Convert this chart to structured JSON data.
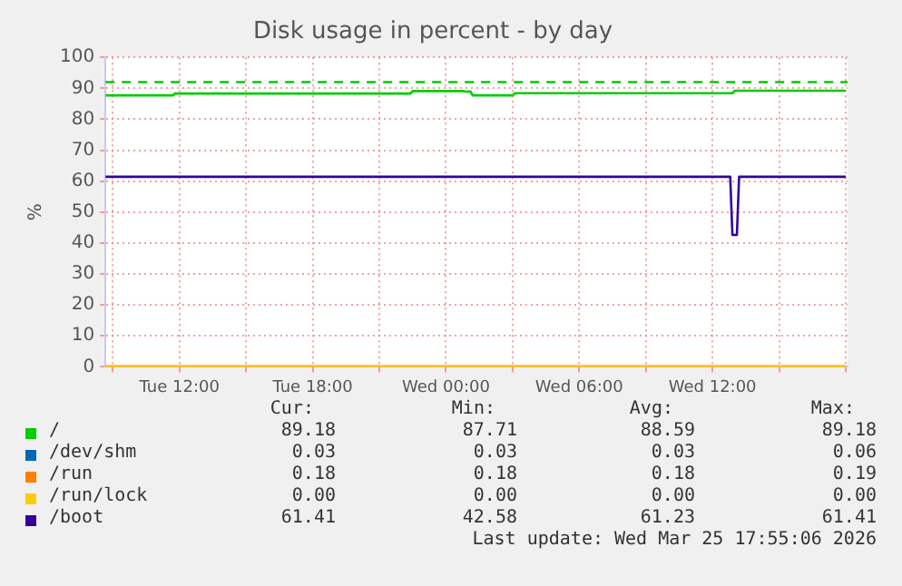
{
  "chart_data": {
    "type": "line",
    "title": "Disk usage in percent - by day",
    "ylabel": "%",
    "xlim": [
      "2026-03-24T08:40",
      "2026-03-25T18:05"
    ],
    "xticks": [
      {
        "value": "2026-03-24T09:00",
        "label": null
      },
      {
        "value": "2026-03-24T12:00",
        "label": "Tue 12:00"
      },
      {
        "value": "2026-03-24T15:00",
        "label": null
      },
      {
        "value": "2026-03-24T18:00",
        "label": "Tue 18:00"
      },
      {
        "value": "2026-03-24T21:00",
        "label": null
      },
      {
        "value": "2026-03-25T00:00",
        "label": "Wed 00:00"
      },
      {
        "value": "2026-03-25T03:00",
        "label": null
      },
      {
        "value": "2026-03-25T06:00",
        "label": "Wed 06:00"
      },
      {
        "value": "2026-03-25T09:00",
        "label": null
      },
      {
        "value": "2026-03-25T12:00",
        "label": "Wed 12:00"
      },
      {
        "value": "2026-03-25T15:00",
        "label": null
      },
      {
        "value": "2026-03-25T18:00",
        "label": null
      }
    ],
    "ylim": [
      0,
      100
    ],
    "yticks": [
      0,
      10,
      20,
      30,
      40,
      50,
      60,
      70,
      80,
      90,
      100
    ],
    "grid": true,
    "legend": "bottom",
    "line_style": "solid",
    "marker": "none",
    "ref_lines": [
      {
        "axis": "y",
        "value": 92,
        "color": "#00cc00",
        "line_style": "dashed"
      }
    ],
    "series": [
      {
        "name": "/",
        "color": "#00cc00",
        "x": [
          "2026-03-24T08:40",
          "2026-03-24T11:42",
          "2026-03-24T11:48",
          "2026-03-24T22:24",
          "2026-03-24T22:30",
          "2026-03-25T00:48",
          "2026-03-25T00:54",
          "2026-03-25T01:06",
          "2026-03-25T01:12",
          "2026-03-25T03:00",
          "2026-03-25T03:06",
          "2026-03-25T12:54",
          "2026-03-25T13:00",
          "2026-03-25T18:00"
        ],
        "values": [
          87.7,
          87.7,
          88.3,
          88.3,
          89.1,
          89.1,
          88.9,
          89.0,
          87.7,
          87.7,
          88.4,
          88.4,
          89.2,
          89.2
        ]
      },
      {
        "name": "/dev/shm",
        "color": "#0066b3"
      },
      {
        "name": "/run",
        "color": "#ff8000",
        "x": [
          "2026-03-24T08:40",
          "2026-03-25T18:00"
        ],
        "values": [
          0.2,
          0.2
        ]
      },
      {
        "name": "/run/lock",
        "color": "#ffcc00",
        "x": [
          "2026-03-24T08:40",
          "2026-03-25T18:00"
        ],
        "values": [
          0,
          0
        ]
      },
      {
        "name": "/boot",
        "color": "#330099",
        "x": [
          "2026-03-24T08:40",
          "2026-03-25T12:48",
          "2026-03-25T12:54",
          "2026-03-25T13:06",
          "2026-03-25T13:12",
          "2026-03-25T18:00"
        ],
        "values": [
          61.4,
          61.4,
          42.6,
          42.6,
          61.4,
          61.4
        ]
      }
    ],
    "annotations": [
      "Cur:",
      "Min:",
      "Avg:",
      "Max:",
      "89.18",
      "87.71",
      "88.59",
      "89.18",
      "0.03",
      "0.03",
      "0.03",
      "0.06",
      "0.18",
      "0.18",
      "0.18",
      "0.19",
      "0.00",
      "0.00",
      "0.00",
      "0.00",
      "61.41",
      "42.58",
      "61.23",
      "61.41",
      "Last update: Wed Mar 25 17:55:06 2026"
    ]
  }
}
